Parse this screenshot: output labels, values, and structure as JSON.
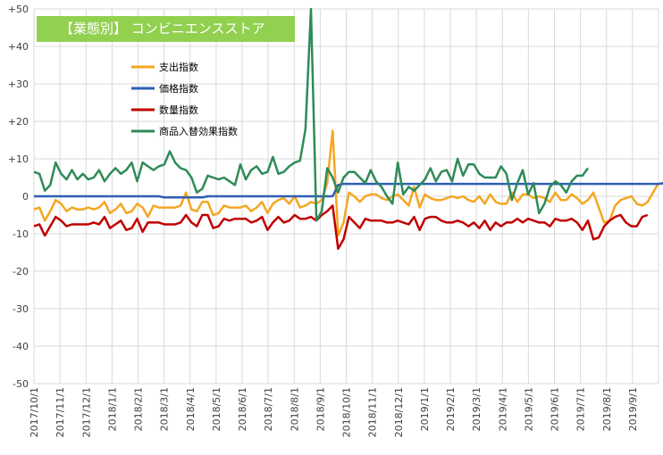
{
  "chart_data": {
    "type": "line",
    "title": "【業態別】 コンビニエンスストア",
    "title_bg": "#92d050",
    "ylim": [
      -50,
      50
    ],
    "y_ticks": [
      "+50",
      "+40",
      "+30",
      "+20",
      "+10",
      "0",
      "-10",
      "-20",
      "-30",
      "-40",
      "-50"
    ],
    "x_ticks": [
      "2017/10/1",
      "2017/11/1",
      "2017/12/1",
      "2018/1/1",
      "2018/2/1",
      "2018/3/1",
      "2018/4/1",
      "2018/5/1",
      "2018/6/1",
      "2018/7/1",
      "2018/8/1",
      "2018/9/1",
      "2018/10/1",
      "2018/11/1",
      "2018/12/1",
      "2019/1/1",
      "2019/2/1",
      "2019/3/1",
      "2019/4/1",
      "2019/5/1",
      "2019/6/1",
      "2019/7/1",
      "2019/8/1",
      "2019/9/1"
    ],
    "grid": true,
    "legend_position": "upper-left",
    "series": [
      {
        "name": "支出指数",
        "color": "#f5a623",
        "values": [
          -3.5,
          -3,
          -6.5,
          -4,
          -1,
          -2,
          -4,
          -3,
          -3.5,
          -3.5,
          -3,
          -3.5,
          -3,
          -1.5,
          -4.5,
          -3.5,
          -2,
          -4.5,
          -4,
          -2,
          -3,
          -5.5,
          -2.5,
          -3,
          -3,
          -3,
          -3,
          -2.5,
          1,
          -3.5,
          -4,
          -1.5,
          -1.5,
          -5,
          -4.5,
          -2.5,
          -3,
          -3,
          -3,
          -2.5,
          -4,
          -3,
          -1.5,
          -4.5,
          -2,
          -1,
          -0.5,
          -2,
          0,
          -3,
          -2.5,
          -1.5,
          -2,
          -1,
          3.5,
          17.5,
          -10.5,
          -7,
          1,
          0,
          -1.5,
          0,
          0.5,
          0.5,
          -0.5,
          -1,
          0,
          0.5,
          -1,
          -2.5,
          2.5,
          -3,
          0.5,
          -0.5,
          -1,
          -1,
          -0.5,
          0,
          -0.5,
          0,
          -1,
          -1.5,
          0,
          -2,
          0.5,
          -1.5,
          -2,
          -2,
          1,
          -1.5,
          0.5,
          0.5,
          -0.5,
          0,
          -0.5,
          -1.5,
          1,
          -1,
          -1,
          0.5,
          -0.5,
          -2,
          -1,
          1,
          -3,
          -7,
          -6.5,
          -2.5,
          -1,
          -0.5,
          0,
          -2,
          -2.5,
          -1.5,
          1,
          3.5
        ],
        "data_name_prefix": "spending"
      },
      {
        "name": "価格指数",
        "color": "#2f5fb3",
        "values": [
          0,
          0,
          0,
          0,
          0,
          0,
          0,
          0,
          0,
          0,
          0,
          0,
          0,
          0,
          0,
          0,
          0,
          0,
          0,
          0,
          0,
          0,
          0,
          0,
          -0.3,
          -0.3,
          -0.3,
          -0.3,
          -0.3,
          -0.3,
          -0.3,
          -0.3,
          0,
          0,
          0,
          0,
          0,
          0,
          0,
          0,
          0,
          0,
          0,
          0,
          0,
          0,
          0,
          0,
          0,
          0,
          0,
          0,
          0,
          0,
          0,
          0,
          3,
          3.3,
          3.3,
          3.3,
          3.3,
          3.3,
          3.3,
          3.3,
          3.3,
          3.3,
          3.3,
          3.3,
          3.3,
          3.3,
          3.3,
          3.3,
          3.3,
          3.3,
          3.3,
          3.3,
          3.3,
          3.3,
          3.3,
          3.3,
          3.3,
          3.3,
          3.3,
          3.3,
          3.3,
          3.3,
          3.3,
          3.3,
          3.3,
          3.3,
          3.3,
          3.3,
          3.3,
          3.3,
          3.3,
          3.3,
          3.3,
          3.3,
          3.3,
          3.3,
          3.3,
          3.3,
          3.3,
          3.3,
          3.3,
          3.3,
          3.3,
          3.3,
          3.3,
          3.3,
          3.3,
          3.3,
          3.3,
          3.3,
          3.3,
          3.3,
          3.5,
          5.5
        ],
        "data_name_prefix": "price"
      },
      {
        "name": "数量指数",
        "color": "#c00000",
        "values": [
          -8,
          -7.5,
          -10.5,
          -8,
          -5.5,
          -6.5,
          -8,
          -7.5,
          -7.5,
          -7.5,
          -7.5,
          -7,
          -7.5,
          -5.5,
          -8.5,
          -7.5,
          -6.5,
          -9,
          -8.5,
          -6,
          -9.5,
          -7,
          -7,
          -7,
          -7.5,
          -7.5,
          -7.5,
          -7,
          -5,
          -7,
          -8,
          -5,
          -5,
          -8.5,
          -8,
          -6,
          -6.5,
          -6,
          -6,
          -6,
          -7,
          -6.5,
          -5.5,
          -9,
          -7,
          -5.5,
          -7,
          -6.5,
          -5,
          -6,
          -6,
          -5.5,
          -6.5,
          -5,
          -4,
          -2.5,
          -14,
          -11.5,
          -5.5,
          -7,
          -8.5,
          -6,
          -6.5,
          -6.5,
          -6.5,
          -7,
          -7,
          -6.5,
          -7,
          -7.5,
          -5.5,
          -9,
          -6,
          -5.5,
          -5.5,
          -6.5,
          -7,
          -7,
          -6.5,
          -7,
          -8,
          -7,
          -8.5,
          -6.5,
          -9,
          -7,
          -8,
          -7,
          -7,
          -6,
          -7,
          -6,
          -6.5,
          -7,
          -7,
          -8,
          -6,
          -6.5,
          -6.5,
          -6,
          -7,
          -9,
          -6.5,
          -11.5,
          -11,
          -8,
          -6.5,
          -5.5,
          -5,
          -7,
          -8,
          -8,
          -5.5,
          -5
        ],
        "data_name_prefix": "volume"
      },
      {
        "name": "商品入替効果指数",
        "color": "#2e8b57",
        "values": [
          6.5,
          6,
          1.5,
          3,
          9,
          6,
          4.5,
          7,
          4.5,
          6,
          4.5,
          5,
          7,
          4,
          6,
          7.5,
          6,
          7,
          9,
          4,
          9,
          8,
          7,
          8,
          8.5,
          12,
          9,
          7.5,
          7,
          5,
          1,
          2,
          5.5,
          5,
          4.5,
          5,
          4,
          3,
          8.5,
          4.5,
          7,
          8,
          6,
          6.5,
          10.5,
          6,
          6.5,
          8,
          9,
          9.5,
          18,
          50,
          -6.5,
          -4,
          7.5,
          5,
          1,
          5,
          6.5,
          6.5,
          5,
          3.5,
          7,
          4,
          2.5,
          0,
          -2,
          9,
          0.5,
          2.5,
          1.5,
          3,
          4.5,
          7.5,
          4,
          6.5,
          7,
          4,
          10,
          5.5,
          8.5,
          8.5,
          6,
          5,
          5,
          5,
          8,
          6,
          -1,
          3.5,
          7,
          0.5,
          3.5,
          -4.5,
          -2,
          2.5,
          4,
          3,
          1,
          4,
          5.5,
          5.5,
          7.5
        ],
        "data_name_prefix": "substitution"
      }
    ]
  }
}
